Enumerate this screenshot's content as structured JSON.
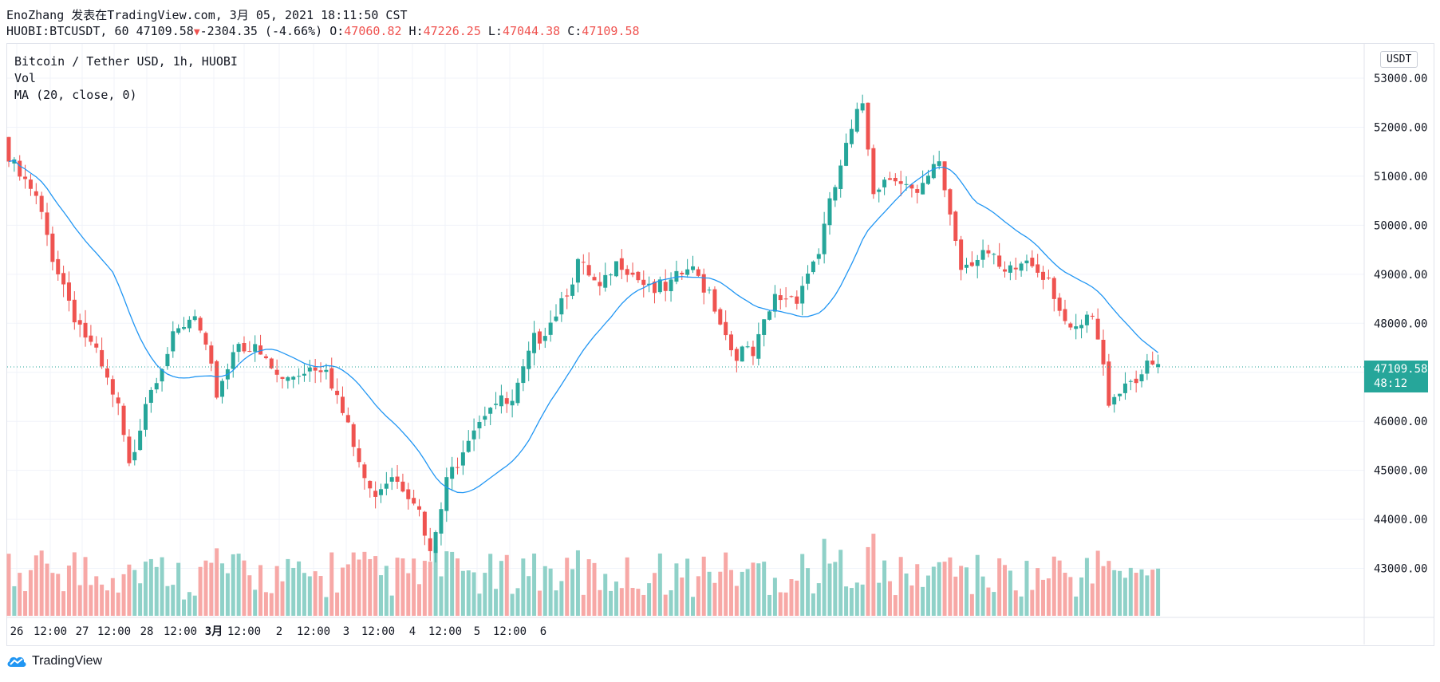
{
  "header": {
    "author_line": "EnoZhang 发表在TradingView.com, 3月 05, 2021 18:11:50 CST",
    "symbol": "HUOBI:BTCUSDT, 60",
    "last": "47109.58",
    "change": "-2304.35 (-4.66%)",
    "o_label": "O:",
    "o": "47060.82",
    "h_label": "H:",
    "h": "47226.25",
    "l_label": "L:",
    "l": "47044.38",
    "c_label": "C:",
    "c": "47109.58"
  },
  "legend": {
    "symbol": "Bitcoin / Tether USD, 1h, HUOBI",
    "vol": "Vol",
    "ma": "MA (20, close, 0)"
  },
  "currency": "USDT",
  "price_tag": {
    "price": "47109.58",
    "countdown": "48:12"
  },
  "footer": {
    "brand": "TradingView"
  },
  "colors": {
    "up": "#26a69a",
    "down": "#ef5350",
    "ma": "#2196f3",
    "vol_up": "#8fd1c8",
    "vol_down": "#f7a8a6"
  },
  "chart_data": {
    "type": "candlestick",
    "title": "Bitcoin / Tether USD, 1h, HUOBI",
    "ylabel": "USDT",
    "ylim": [
      42000,
      53700
    ],
    "y_ticks": [
      43000,
      44000,
      45000,
      46000,
      47000,
      48000,
      49000,
      50000,
      51000,
      52000,
      53000
    ],
    "y_tick_labels": [
      "43000.00",
      "44000.00",
      "45000.00",
      "46000.00",
      "47000.00",
      "48000.00",
      "49000.00",
      "50000.00",
      "51000.00",
      "52000.00",
      "53000.00"
    ],
    "x_tick_labels": [
      "26",
      "12:00",
      "27",
      "12:00",
      "28",
      "12:00",
      "3月",
      "12:00",
      "2",
      "12:00",
      "3",
      "12:00",
      "4",
      "12:00",
      "5",
      "12:00",
      "6"
    ],
    "close_anchors": [
      [
        0,
        51300
      ],
      [
        5,
        50500
      ],
      [
        8,
        49400
      ],
      [
        12,
        48200
      ],
      [
        16,
        47300
      ],
      [
        20,
        46200
      ],
      [
        22,
        45000
      ],
      [
        25,
        46500
      ],
      [
        29,
        47500
      ],
      [
        34,
        48100
      ],
      [
        38,
        46600
      ],
      [
        42,
        47700
      ],
      [
        46,
        47300
      ],
      [
        50,
        46800
      ],
      [
        54,
        47100
      ],
      [
        58,
        47200
      ],
      [
        62,
        45800
      ],
      [
        66,
        44500
      ],
      [
        70,
        45000
      ],
      [
        74,
        44500
      ],
      [
        77,
        43200
      ],
      [
        80,
        44700
      ],
      [
        84,
        45800
      ],
      [
        88,
        46400
      ],
      [
        92,
        46300
      ],
      [
        96,
        47600
      ],
      [
        100,
        48300
      ],
      [
        104,
        49200
      ],
      [
        108,
        48600
      ],
      [
        112,
        49300
      ],
      [
        116,
        48900
      ],
      [
        120,
        48600
      ],
      [
        124,
        49100
      ],
      [
        128,
        48700
      ],
      [
        132,
        47500
      ],
      [
        136,
        47300
      ],
      [
        140,
        48500
      ],
      [
        144,
        48600
      ],
      [
        148,
        49500
      ],
      [
        152,
        51200
      ],
      [
        156,
        52500
      ],
      [
        158,
        50800
      ],
      [
        162,
        51100
      ],
      [
        166,
        50500
      ],
      [
        170,
        51300
      ],
      [
        174,
        49200
      ],
      [
        178,
        49500
      ],
      [
        182,
        48900
      ],
      [
        186,
        49300
      ],
      [
        190,
        49000
      ],
      [
        194,
        47700
      ],
      [
        198,
        48100
      ],
      [
        201,
        46500
      ],
      [
        205,
        46900
      ],
      [
        210,
        47109
      ]
    ],
    "ma": {
      "name": "MA (20, close, 0)",
      "period": 20
    },
    "last_price": 47109.58
  }
}
